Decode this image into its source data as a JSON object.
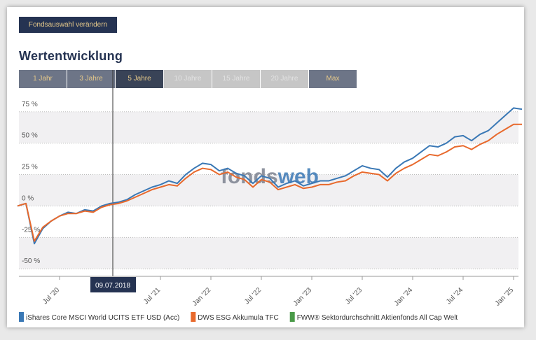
{
  "button": "Fondsauswahl verändern",
  "title": "Wertentwicklung",
  "tabs": [
    "1 Jahr",
    "3 Jahre",
    "5 Jahre",
    "10 Jahre",
    "15 Jahre",
    "20 Jahre",
    "Max"
  ],
  "tooltip": "09.07.2018",
  "watermark": [
    "fonds",
    "web"
  ],
  "chart_data": {
    "type": "line",
    "categories": [
      "Feb '20",
      "Mar '20",
      "Apr '20",
      "May '20",
      "Jun '20",
      "Jul '20",
      "Aug '20",
      "Sep '20",
      "Oct '20",
      "Nov '20",
      "Dec '20",
      "Jan '21",
      "Feb '21",
      "Mar '21",
      "Apr '21",
      "May '21",
      "Jun '21",
      "Jul '21",
      "Aug '21",
      "Sep '21",
      "Oct '21",
      "Nov '21",
      "Dec '21",
      "Jan '22",
      "Feb '22",
      "Mar '22",
      "Apr '22",
      "May '22",
      "Jun '22",
      "Jul '22",
      "Aug '22",
      "Sep '22",
      "Oct '22",
      "Nov '22",
      "Dec '22",
      "Jan '23",
      "Feb '23",
      "Mar '23",
      "Apr '23",
      "May '23",
      "Jun '23",
      "Jul '23",
      "Aug '23",
      "Sep '23",
      "Oct '23",
      "Nov '23",
      "Dec '23",
      "Jan '24",
      "Feb '24",
      "Mar '24",
      "Apr '24",
      "May '24",
      "Jun '24",
      "Jul '24",
      "Aug '24",
      "Sep '24",
      "Oct '24",
      "Nov '24",
      "Dec '24",
      "Jan '25",
      "Feb '25"
    ],
    "xticks": [
      "Jul '20",
      "Jul '21",
      "Jan '22",
      "Jul '22",
      "Jan '23",
      "Jul '23",
      "Jan '24",
      "Jul '24",
      "Jan '25"
    ],
    "series": [
      {
        "name": "iShares Core MSCI World UCITS ETF USD (Acc)",
        "color": "#3a78b5",
        "values": [
          0,
          2,
          -30,
          -18,
          -12,
          -8,
          -5,
          -6,
          -3,
          -4,
          0,
          2,
          3,
          5,
          9,
          12,
          15,
          17,
          20,
          18,
          25,
          30,
          34,
          33,
          28,
          30,
          26,
          24,
          18,
          24,
          22,
          15,
          18,
          20,
          16,
          18,
          20,
          20,
          22,
          24,
          28,
          32,
          30,
          29,
          23,
          30,
          35,
          38,
          43,
          48,
          47,
          50,
          55,
          56,
          52,
          57,
          60,
          66,
          72,
          78,
          77
        ]
      },
      {
        "name": "DWS ESG Akkumula TFC",
        "color": "#e8692c",
        "values": [
          0,
          2,
          -28,
          -17,
          -12,
          -8,
          -6,
          -6,
          -4,
          -5,
          -1,
          1,
          2,
          4,
          7,
          10,
          13,
          15,
          17,
          16,
          22,
          27,
          30,
          29,
          25,
          27,
          23,
          21,
          15,
          21,
          19,
          13,
          15,
          17,
          14,
          15,
          17,
          17,
          19,
          20,
          24,
          27,
          26,
          25,
          20,
          26,
          30,
          33,
          37,
          41,
          40,
          43,
          47,
          48,
          45,
          49,
          52,
          57,
          61,
          65,
          65
        ]
      },
      {
        "name": "FWW® Sektordurchschnitt Aktienfonds All Cap Welt",
        "color": "#4a9a48",
        "values": [
          null,
          null,
          null,
          null,
          null,
          null,
          null,
          null,
          null,
          null,
          null,
          null,
          null,
          null,
          null,
          null,
          null,
          null,
          null,
          null,
          null,
          null,
          null,
          null,
          null,
          null,
          null,
          null,
          null,
          null,
          null,
          null,
          null,
          null,
          null,
          null,
          null,
          null,
          null,
          null,
          null,
          null,
          null,
          null,
          null,
          null,
          null,
          null,
          null,
          null,
          null,
          null,
          null,
          null,
          null,
          null,
          null,
          null,
          null,
          null,
          null
        ]
      }
    ],
    "ylim": [
      -56,
      86
    ],
    "yticks": [
      {
        "value": -50,
        "label": "-50 %"
      },
      {
        "value": -25,
        "label": "-25 %"
      },
      {
        "value": 0,
        "label": "0 %"
      },
      {
        "value": 25,
        "label": "25 %"
      },
      {
        "value": 50,
        "label": "50 %"
      },
      {
        "value": 75,
        "label": "75 %"
      }
    ],
    "grid": true
  }
}
